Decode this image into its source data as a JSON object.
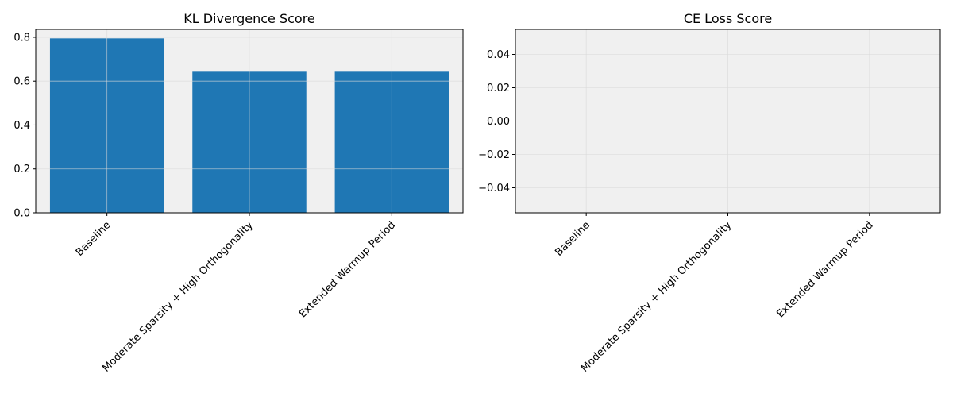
{
  "chart_data": [
    {
      "type": "bar",
      "title": "KL Divergence Score",
      "xlabel": "",
      "ylabel": "",
      "categories": [
        "Baseline",
        "Moderate Sparsity + High Orthogonality",
        "Extended Warmup Period"
      ],
      "values": [
        0.795,
        0.643,
        0.643
      ],
      "ylim": [
        0,
        0.836
      ],
      "yticks": [
        "0.0",
        "0.2",
        "0.4",
        "0.6",
        "0.8"
      ],
      "ytick_values": [
        0,
        0.2,
        0.4,
        0.6,
        0.8
      ],
      "bar_color": "#1f77b4",
      "grid": true,
      "legend": "none"
    },
    {
      "type": "bar",
      "title": "CE Loss Score",
      "xlabel": "",
      "ylabel": "",
      "categories": [
        "Baseline",
        "Moderate Sparsity + High Orthogonality",
        "Extended Warmup Period"
      ],
      "values": [
        null,
        null,
        null
      ],
      "ylim": [
        -0.055,
        0.055
      ],
      "yticks": [
        "−0.04",
        "−0.02",
        "0.00",
        "0.02",
        "0.04"
      ],
      "ytick_values": [
        -0.04,
        -0.02,
        0,
        0.02,
        0.04
      ],
      "bar_color": "#1f77b4",
      "grid": true,
      "legend": "none"
    }
  ],
  "style": {
    "axes_background": "#f0f0f0",
    "grid_color": "#d8d8d8"
  }
}
